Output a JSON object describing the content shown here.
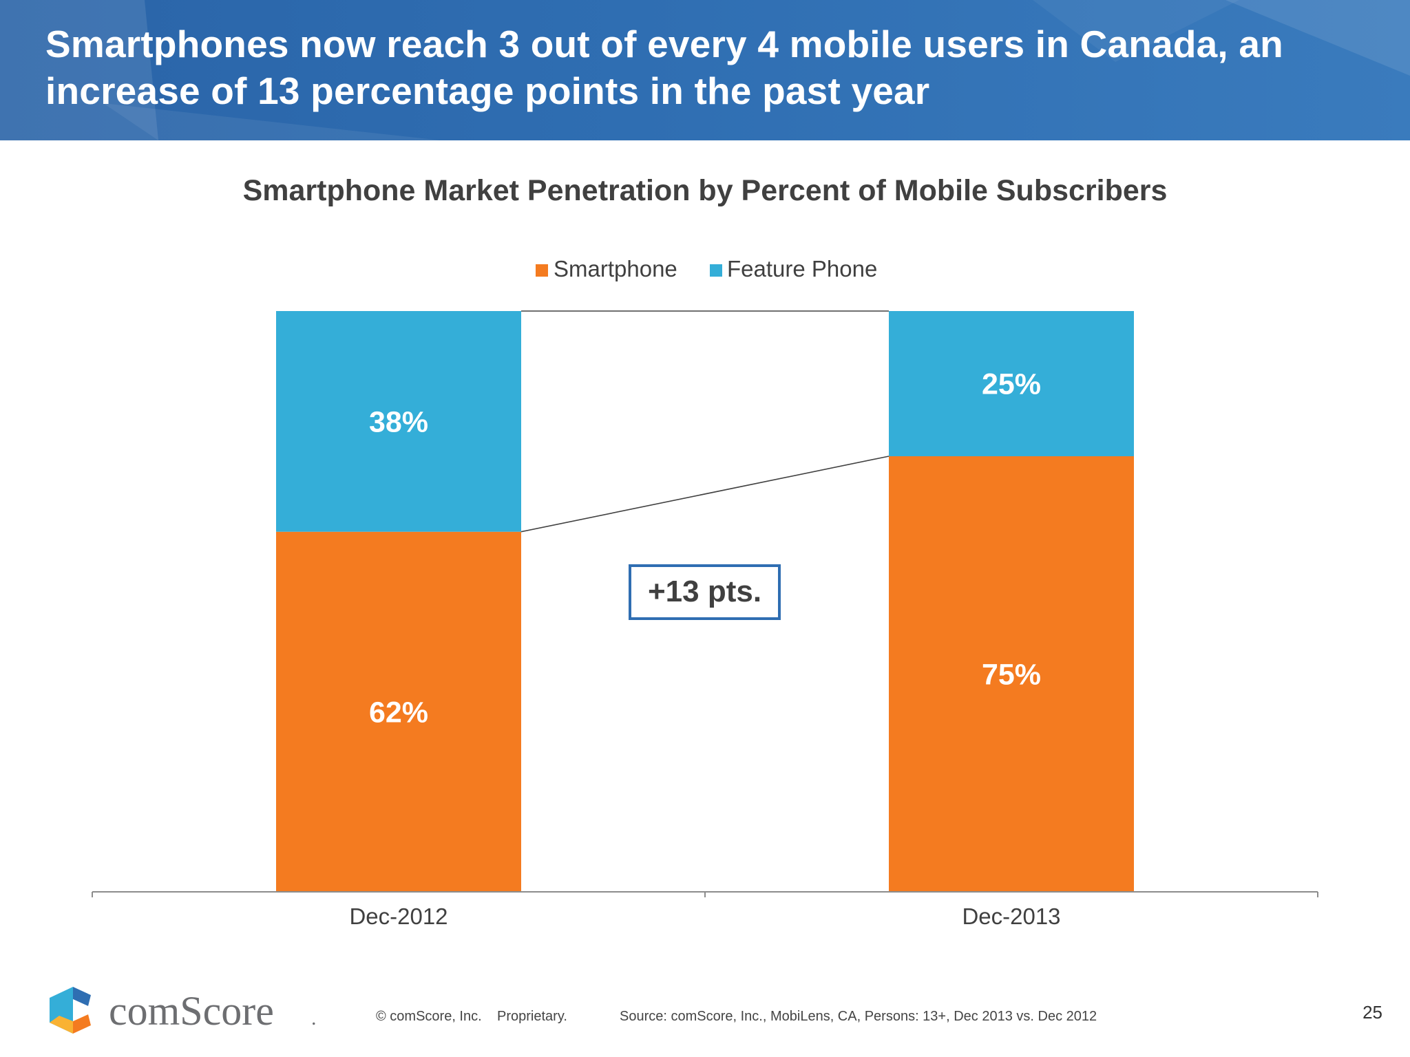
{
  "slide": {
    "title": "Smartphones now reach 3 out of every 4 mobile users in Canada, an increase of 13 percentage points in the past year",
    "page_number": "25",
    "header_color": "#2f6eb2"
  },
  "chart_data": {
    "type": "bar",
    "stacked": true,
    "title": "Smartphone Market Penetration by Percent of Mobile Subscribers",
    "categories": [
      "Dec-2012",
      "Dec-2013"
    ],
    "series": [
      {
        "name": "Smartphone",
        "values": [
          62,
          75
        ],
        "labels": [
          "62%",
          "75%"
        ],
        "color": "#f47b20"
      },
      {
        "name": "Feature Phone",
        "values": [
          38,
          25
        ],
        "labels": [
          "38%",
          "25%"
        ],
        "color": "#34aed8"
      }
    ],
    "ylim": [
      0,
      100
    ],
    "legend": "top-center",
    "grid": false,
    "annotation": {
      "text": "+13 pts.",
      "border_color": "#2f6eb2"
    }
  },
  "footer": {
    "logo_text": "comScore",
    "logo_suffix": ".",
    "copyright": "© comScore, Inc.",
    "proprietary": "Proprietary.",
    "source": "Source: comScore, Inc., MobiLens, CA, Persons: 13+, Dec 2013 vs. Dec 2012",
    "logo_colors": [
      "#2f6eb2",
      "#34aed8",
      "#f47b20",
      "#f9b233"
    ]
  }
}
